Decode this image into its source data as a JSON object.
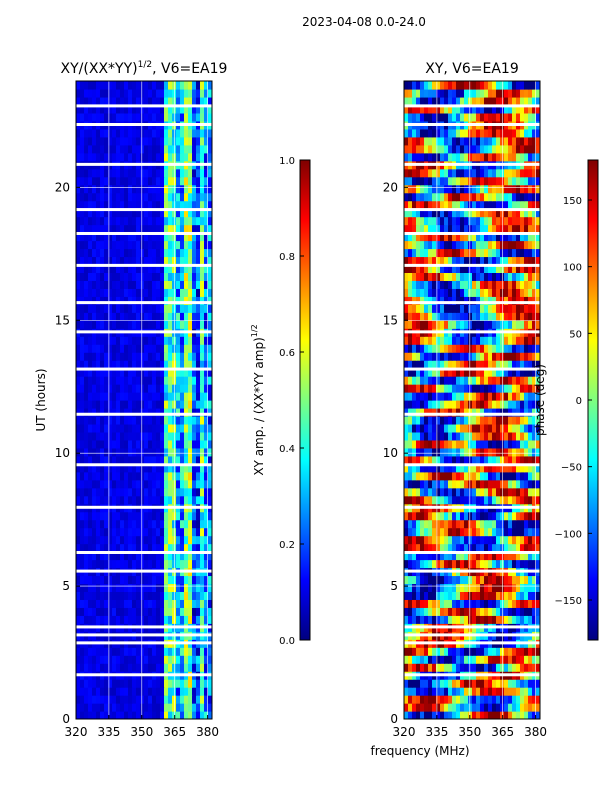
{
  "figure": {
    "suptitle": "2023-04-08 0.0-24.0",
    "shared_xlabel": "frequency (MHz)"
  },
  "chart_data": [
    {
      "type": "heatmap",
      "title": "XY/(XX*YY)",
      "title_exponent": "1/2",
      "title_suffix": ", V6=EA19",
      "xlabel": "",
      "ylabel": "UT (hours)",
      "xlim": [
        320,
        382
      ],
      "ylim": [
        0,
        24
      ],
      "xticks": [
        320,
        335,
        350,
        365,
        380
      ],
      "yticks": [
        0,
        5,
        10,
        15,
        20
      ],
      "grid": true,
      "colormap": "jet",
      "colorbar": {
        "label": "XY amp. / (XX*YY amp)",
        "label_exponent": "1/2",
        "range": [
          0.0,
          1.0
        ],
        "ticks": [
          "0.0",
          "0.2",
          "0.4",
          "0.6",
          "0.8",
          "1.0"
        ]
      },
      "value_bands": [
        {
          "x_range": [
            320,
            361
          ],
          "value": 0.1
        },
        {
          "x_range": [
            361,
            366
          ],
          "value": 0.45
        },
        {
          "x_range": [
            366,
            369
          ],
          "value": 0.3
        },
        {
          "x_range": [
            369,
            373
          ],
          "value": 0.5
        },
        {
          "x_range": [
            373,
            376
          ],
          "value": 0.2
        },
        {
          "x_range": [
            376,
            379
          ],
          "value": 0.45
        },
        {
          "x_range": [
            379,
            382
          ],
          "value": 0.25
        }
      ],
      "flagged_hours": [
        1.6,
        2.8,
        3.1,
        3.4,
        5.5,
        6.2,
        7.9,
        9.5,
        11.4,
        13.1,
        14.5,
        15.6,
        17.0,
        18.2,
        19.1,
        20.8,
        22.3,
        23.0
      ]
    },
    {
      "type": "heatmap",
      "title": "XY, V6=EA19",
      "xlabel": "",
      "ylabel": "",
      "xlim": [
        320,
        382
      ],
      "ylim": [
        0,
        24
      ],
      "xticks": [
        320,
        335,
        350,
        365,
        380
      ],
      "yticks": [
        0,
        5,
        10,
        15,
        20
      ],
      "grid": true,
      "colormap": "jet",
      "colorbar": {
        "label": "phase (deg)",
        "range": [
          -180,
          180
        ],
        "ticks": [
          "150",
          "100",
          "50",
          "0",
          "−50",
          "−100",
          "−150"
        ],
        "tick_values": [
          150,
          100,
          50,
          0,
          -50,
          -100,
          -150
        ]
      },
      "flagged_hours": [
        1.6,
        2.8,
        3.1,
        3.4,
        5.5,
        6.2,
        7.9,
        9.5,
        11.4,
        13.1,
        14.5,
        15.6,
        17.0,
        18.2,
        19.1,
        20.8,
        22.3,
        23.0
      ]
    }
  ]
}
